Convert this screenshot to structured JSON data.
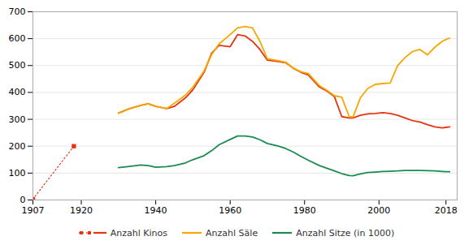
{
  "chart_data": {
    "type": "line",
    "xlim": [
      1907,
      2021
    ],
    "xticks": [
      1907,
      1920,
      1940,
      1960,
      1980,
      2000,
      2018
    ],
    "ylim": [
      0,
      700
    ],
    "yticks": [
      0,
      100,
      200,
      300,
      400,
      500,
      600,
      700
    ],
    "grid": true,
    "legend": "bottom",
    "series": [
      {
        "name": "Anzahl Kinos",
        "color": "#e63312",
        "line_style": "dotted",
        "marker": "square",
        "x": [
          1907,
          1918
        ],
        "values": [
          3,
          200
        ]
      },
      {
        "name": "Anzahl Kinos",
        "color": "#e63312",
        "line_style": "solid",
        "x": [
          1930,
          1933,
          1936,
          1938,
          1940,
          1943,
          1945,
          1948,
          1950,
          1953,
          1955,
          1957,
          1960,
          1962,
          1964,
          1966,
          1968,
          1970,
          1973,
          1975,
          1977,
          1979,
          1981,
          1984,
          1986,
          1988,
          1990,
          1992,
          1993,
          1995,
          1997,
          1999,
          2001,
          2003,
          2005,
          2007,
          2009,
          2011,
          2013,
          2015,
          2017,
          2018,
          2019
        ],
        "values": [
          323,
          340,
          352,
          358,
          348,
          340,
          348,
          380,
          410,
          475,
          545,
          575,
          570,
          615,
          610,
          590,
          560,
          520,
          515,
          510,
          490,
          475,
          465,
          420,
          405,
          385,
          310,
          305,
          305,
          315,
          320,
          322,
          325,
          322,
          315,
          305,
          295,
          290,
          280,
          272,
          268,
          270,
          272
        ]
      },
      {
        "name": "Anzahl Säle",
        "color": "#f5a800",
        "line_style": "solid",
        "x": [
          1930,
          1933,
          1936,
          1938,
          1940,
          1943,
          1945,
          1948,
          1950,
          1953,
          1955,
          1957,
          1960,
          1962,
          1964,
          1966,
          1968,
          1970,
          1973,
          1975,
          1977,
          1979,
          1981,
          1984,
          1986,
          1988,
          1990,
          1992,
          1993,
          1995,
          1997,
          1999,
          2001,
          2003,
          2005,
          2007,
          2009,
          2011,
          2013,
          2015,
          2017,
          2018,
          2019
        ],
        "values": [
          323,
          340,
          352,
          358,
          348,
          340,
          360,
          390,
          420,
          480,
          540,
          580,
          615,
          640,
          645,
          640,
          590,
          525,
          518,
          512,
          490,
          477,
          470,
          425,
          408,
          388,
          382,
          310,
          308,
          380,
          415,
          430,
          433,
          435,
          500,
          530,
          552,
          560,
          540,
          568,
          590,
          597,
          602
        ]
      },
      {
        "name": "Anzahl Sitze (in 1000)",
        "color": "#1a8a50",
        "line_style": "solid",
        "x": [
          1930,
          1933,
          1936,
          1938,
          1940,
          1943,
          1945,
          1948,
          1950,
          1953,
          1955,
          1957,
          1960,
          1962,
          1964,
          1966,
          1968,
          1970,
          1973,
          1975,
          1977,
          1979,
          1981,
          1984,
          1986,
          1988,
          1990,
          1992,
          1993,
          1995,
          1997,
          1999,
          2001,
          2003,
          2005,
          2007,
          2009,
          2011,
          2013,
          2015,
          2017,
          2018,
          2019
        ],
        "values": [
          120,
          125,
          130,
          128,
          122,
          124,
          128,
          138,
          150,
          165,
          183,
          205,
          225,
          238,
          238,
          234,
          224,
          210,
          200,
          191,
          178,
          162,
          148,
          128,
          118,
          108,
          98,
          91,
          90,
          97,
          102,
          104,
          106,
          107,
          108,
          110,
          110,
          110,
          109,
          108,
          106,
          105,
          105
        ]
      }
    ]
  }
}
